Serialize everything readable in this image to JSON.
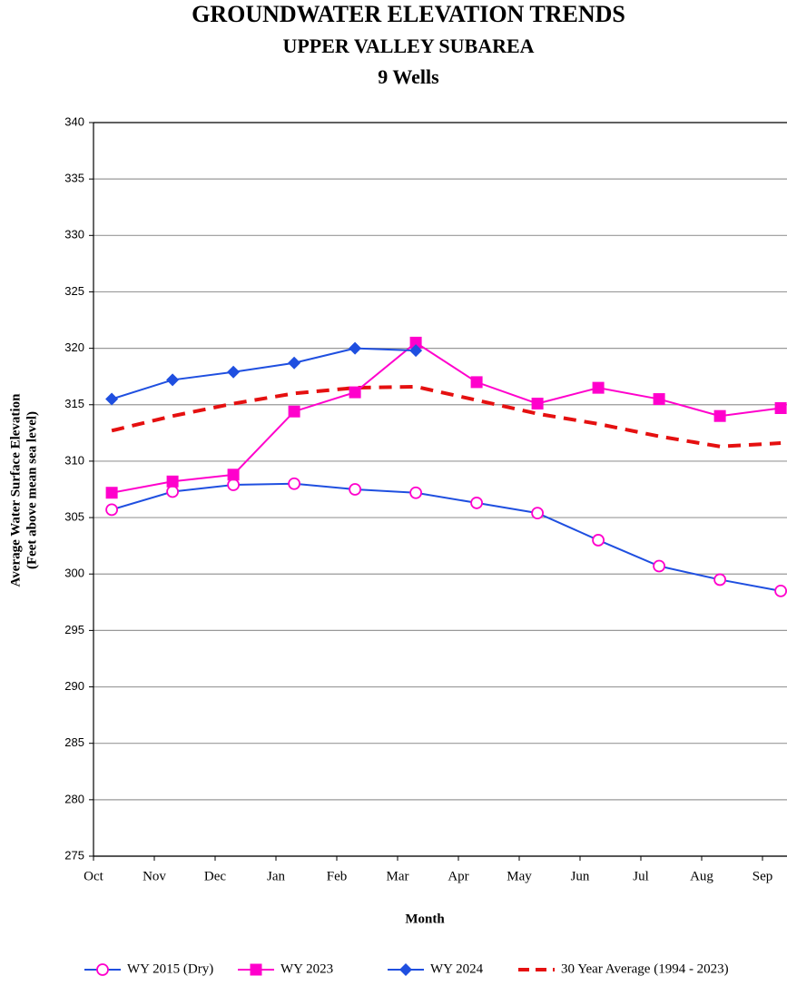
{
  "chart_data": {
    "type": "line",
    "title": "GROUNDWATER ELEVATION TRENDS",
    "subtitle": [
      "UPPER VALLEY SUBAREA",
      "9 Wells"
    ],
    "x_label": "Month",
    "y_label": [
      "Average Water Surface Elevation",
      "(Feet above mean sea level)"
    ],
    "categories": [
      "Oct",
      "Nov",
      "Dec",
      "Jan",
      "Feb",
      "Mar",
      "Apr",
      "May",
      "Jun",
      "Jul",
      "Aug",
      "Sep"
    ],
    "ylim": [
      275,
      340
    ],
    "yticks": [
      275,
      280,
      285,
      290,
      295,
      300,
      305,
      310,
      315,
      320,
      325,
      330,
      335,
      340
    ],
    "grid": true,
    "legend": "bottom",
    "series": [
      {
        "name": "WY 2015 (Dry)",
        "color": "#1f4fe0",
        "marker": "open-circle",
        "marker_color": "#ff00cc",
        "values": [
          305.7,
          307.3,
          307.9,
          308.0,
          307.5,
          307.2,
          306.3,
          305.4,
          303.0,
          300.7,
          299.5,
          298.5
        ]
      },
      {
        "name": "WY 2023",
        "color": "#ff00cc",
        "marker": "square",
        "values": [
          307.2,
          308.2,
          308.8,
          314.4,
          316.1,
          320.5,
          317.0,
          315.1,
          316.5,
          315.5,
          314.0,
          314.7
        ]
      },
      {
        "name": "WY 2024",
        "color": "#1f4fe0",
        "marker": "diamond",
        "values": [
          315.5,
          317.2,
          317.9,
          318.7,
          320.0,
          319.8,
          null,
          null,
          null,
          null,
          null,
          null
        ]
      },
      {
        "name": "30 Year Average (1994 - 2023)",
        "color": "#e51010",
        "dashed": true,
        "values": [
          312.7,
          314.0,
          315.1,
          316.0,
          316.5,
          316.6,
          315.4,
          314.2,
          313.3,
          312.2,
          311.3,
          311.6
        ]
      }
    ]
  }
}
